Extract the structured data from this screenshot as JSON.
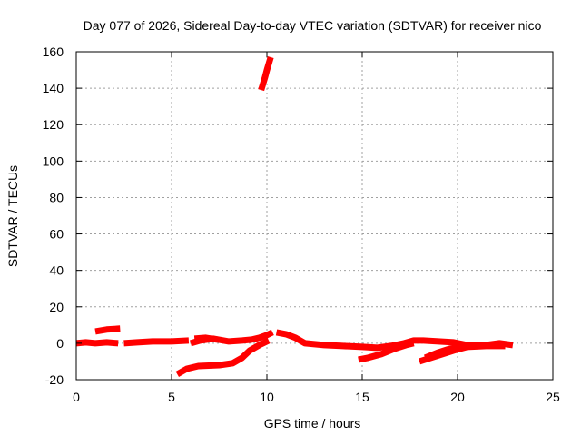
{
  "chart_data": {
    "type": "scatter",
    "title": "Day 077 of 2026, Sidereal Day-to-day VTEC variation (SDTVAR) for receiver nico",
    "xlabel": "GPS time / hours",
    "ylabel": "SDTVAR / TECUs",
    "xlim": [
      0,
      25
    ],
    "ylim": [
      -20,
      160
    ],
    "xticks": [
      0,
      5,
      10,
      15,
      20,
      25
    ],
    "yticks": [
      -20,
      0,
      20,
      40,
      60,
      80,
      100,
      120,
      140,
      160
    ],
    "grid": true,
    "legend": "none",
    "marker_color": "#ff0000",
    "series": [
      {
        "segments": [
          [
            [
              0,
              0
            ],
            [
              0.5,
              0.5
            ],
            [
              1,
              0
            ],
            [
              1.6,
              0.5
            ],
            [
              2.2,
              0
            ]
          ],
          [
            [
              1.0,
              6.5
            ],
            [
              1.6,
              7.5
            ],
            [
              2.3,
              8
            ]
          ],
          [
            [
              2.5,
              0
            ],
            [
              3.2,
              0.5
            ],
            [
              4,
              1
            ],
            [
              5,
              1
            ],
            [
              5.9,
              1.5
            ]
          ],
          [
            [
              6.0,
              0
            ],
            [
              6.5,
              1.5
            ],
            [
              7.2,
              2.5
            ],
            [
              8.0,
              1
            ],
            [
              8.7,
              1.5
            ],
            [
              9.2,
              2
            ],
            [
              9.6,
              3
            ],
            [
              10.0,
              4.5
            ],
            [
              10.3,
              6
            ]
          ],
          [
            [
              6.2,
              2.5
            ],
            [
              6.8,
              3
            ],
            [
              7.4,
              2
            ]
          ],
          [
            [
              5.3,
              -17
            ],
            [
              5.8,
              -14
            ],
            [
              6.4,
              -12.5
            ],
            [
              7.5,
              -12
            ],
            [
              8.2,
              -11
            ],
            [
              8.7,
              -8
            ],
            [
              9.1,
              -4
            ],
            [
              9.6,
              -1
            ],
            [
              10.1,
              1.5
            ]
          ],
          [
            [
              9.7,
              139
            ],
            [
              9.9,
              146
            ],
            [
              10.0,
              150
            ],
            [
              10.2,
              157
            ]
          ],
          [
            [
              10.5,
              6
            ],
            [
              11.0,
              5
            ],
            [
              11.5,
              3
            ],
            [
              12.0,
              0
            ],
            [
              12.5,
              -0.5
            ],
            [
              13.0,
              -1
            ],
            [
              14.0,
              -1.5
            ],
            [
              15.0,
              -2
            ],
            [
              15.8,
              -2.5
            ],
            [
              16.5,
              -1.5
            ],
            [
              17.2,
              0
            ],
            [
              17.7,
              1.5
            ],
            [
              18.2,
              1.5
            ],
            [
              19.0,
              1
            ],
            [
              19.8,
              0.5
            ],
            [
              20.5,
              -1
            ],
            [
              21.0,
              -1
            ],
            [
              21.5,
              -1
            ],
            [
              22.2,
              0
            ],
            [
              22.9,
              -1
            ]
          ],
          [
            [
              14.8,
              -9
            ],
            [
              15.3,
              -8
            ],
            [
              16.0,
              -6
            ],
            [
              16.7,
              -3
            ],
            [
              17.3,
              -1
            ],
            [
              17.7,
              0
            ]
          ],
          [
            [
              18.0,
              -10
            ],
            [
              18.6,
              -8
            ],
            [
              19.2,
              -6
            ],
            [
              19.8,
              -4
            ],
            [
              20.5,
              -2
            ],
            [
              21.5,
              -1.5
            ],
            [
              22.5,
              -1.5
            ]
          ],
          [
            [
              18.3,
              -8
            ],
            [
              19.0,
              -5
            ],
            [
              19.6,
              -3
            ],
            [
              20.2,
              -2
            ]
          ]
        ]
      }
    ]
  }
}
